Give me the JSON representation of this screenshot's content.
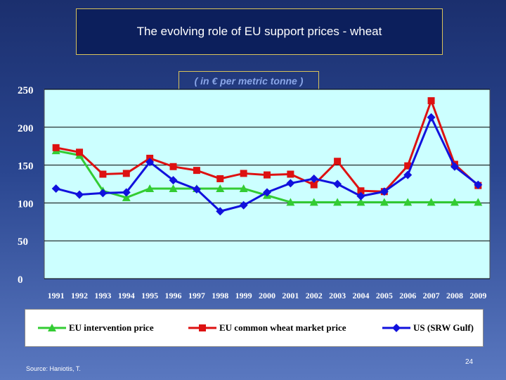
{
  "slide": {
    "title": "The evolving role of EU support prices - wheat",
    "subtitle": "( in € per metric tonne )",
    "source": "Source: Haniotis, T.",
    "page_number": "24"
  },
  "colors": {
    "plot_bg": "#ccffff",
    "eu_intervention": "#33cc33",
    "eu_market": "#dd1111",
    "us": "#1111dd"
  },
  "chart_data": {
    "type": "line",
    "title": "The evolving role of EU support prices - wheat",
    "subtitle": "( in € per metric tonne )",
    "x": [
      "1991",
      "1992",
      "1993",
      "1994",
      "1995",
      "1996",
      "1997",
      "1998",
      "1999",
      "2000",
      "2001",
      "2002",
      "2003",
      "2004",
      "2005",
      "2006",
      "2007",
      "2008",
      "2009"
    ],
    "ylim": [
      0,
      250
    ],
    "yticks": [
      "0",
      "50",
      "100",
      "150",
      "200",
      "250"
    ],
    "grid": true,
    "legend_position": "bottom",
    "series": [
      {
        "name": "EU intervention price",
        "marker": "triangle",
        "values": [
          169,
          163,
          116,
          107,
          119,
          119,
          119,
          119,
          119,
          110,
          101,
          101,
          101,
          101,
          101,
          101,
          101,
          101,
          101
        ]
      },
      {
        "name": "EU common wheat market price",
        "marker": "square",
        "values": [
          173,
          167,
          138,
          139,
          159,
          148,
          143,
          132,
          139,
          137,
          138,
          124,
          155,
          116,
          115,
          149,
          235,
          151,
          123
        ]
      },
      {
        "name": "US (SRW Gulf)",
        "marker": "diamond",
        "values": [
          119,
          111,
          113,
          114,
          154,
          130,
          118,
          89,
          97,
          114,
          126,
          132,
          125,
          109,
          115,
          137,
          213,
          148,
          124
        ]
      }
    ]
  }
}
